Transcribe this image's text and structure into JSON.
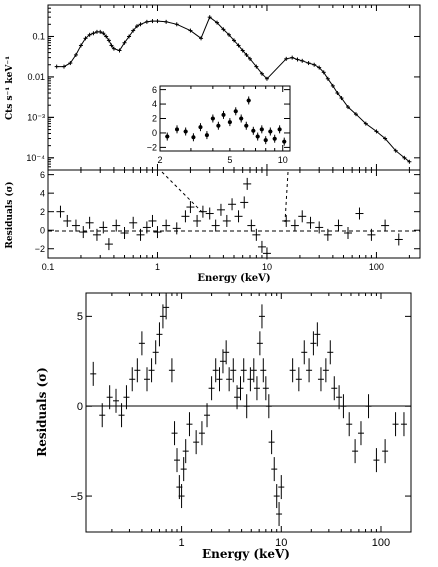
{
  "chart_data": [
    {
      "id": "top_spectrum",
      "type": "scatter",
      "title": "",
      "xlabel": "",
      "ylabel": "Cts s⁻¹ keV⁻¹",
      "xscale": "log",
      "yscale": "log",
      "xlim": [
        0.1,
        250
      ],
      "ylim": [
        5e-05,
        0.6
      ],
      "y_ticks": [
        {
          "v": 0.1,
          "label": "0.1"
        },
        {
          "v": 0.01,
          "label": "0.01"
        },
        {
          "v": 0.001,
          "label": "10⁻³"
        },
        {
          "v": 0.0001,
          "label": "10⁻⁴"
        }
      ],
      "series": [
        {
          "x": [
            0.12,
            0.14,
            0.16,
            0.18,
            0.2,
            0.22,
            0.24,
            0.26,
            0.28,
            0.3,
            0.32,
            0.34,
            0.36,
            0.38,
            0.4,
            0.45,
            0.5,
            0.55,
            0.6,
            0.65,
            0.7,
            0.8,
            0.9,
            1.0,
            1.2,
            1.5,
            2.0,
            2.5,
            3.0,
            3.5,
            4.0,
            4.5,
            5.0,
            5.5,
            6.0,
            6.5,
            7.0,
            8.0,
            9.0,
            10.0,
            15,
            17,
            19,
            21,
            24,
            27,
            30,
            33,
            36,
            40,
            44,
            48,
            55,
            65,
            80,
            100,
            120,
            150,
            180,
            200
          ],
          "y": [
            0.018,
            0.018,
            0.022,
            0.035,
            0.06,
            0.09,
            0.11,
            0.12,
            0.13,
            0.13,
            0.12,
            0.1,
            0.08,
            0.06,
            0.05,
            0.045,
            0.07,
            0.1,
            0.14,
            0.18,
            0.2,
            0.23,
            0.24,
            0.24,
            0.23,
            0.2,
            0.14,
            0.09,
            0.3,
            0.22,
            0.15,
            0.11,
            0.08,
            0.06,
            0.045,
            0.035,
            0.028,
            0.018,
            0.012,
            0.009,
            0.028,
            0.03,
            0.027,
            0.025,
            0.022,
            0.02,
            0.017,
            0.013,
            0.009,
            0.006,
            0.004,
            0.003,
            0.0018,
            0.0012,
            0.0007,
            0.00045,
            0.0003,
            0.00015,
            0.0001,
            8e-05
          ]
        }
      ]
    },
    {
      "id": "top_inset",
      "type": "scatter",
      "xscale": "log",
      "xlim": [
        2,
        11
      ],
      "ylim": [
        -2.5,
        6.5
      ],
      "x_ticks": [
        {
          "v": 2,
          "label": "2"
        },
        {
          "v": 5,
          "label": "5"
        },
        {
          "v": 10,
          "label": "10"
        }
      ],
      "y_ticks": [
        {
          "v": -2,
          "label": "−2"
        },
        {
          "v": 0,
          "label": "0"
        },
        {
          "v": 2,
          "label": "2"
        },
        {
          "v": 4,
          "label": "4"
        },
        {
          "v": 6,
          "label": "6"
        }
      ],
      "series": [
        {
          "x": [
            2.2,
            2.5,
            2.8,
            3.1,
            3.4,
            3.7,
            4.0,
            4.3,
            4.6,
            5.0,
            5.4,
            5.8,
            6.2,
            6.4,
            6.8,
            7.2,
            7.6,
            8.0,
            8.5,
            9.0,
            9.6,
            10.2
          ],
          "y": [
            -0.5,
            0.5,
            0.2,
            -0.6,
            0.8,
            -0.3,
            2.0,
            1.0,
            2.5,
            1.5,
            3.0,
            2.0,
            1.0,
            4.5,
            0.3,
            -0.5,
            0.5,
            -1.0,
            0.2,
            -0.8,
            0.5,
            -1.2
          ]
        }
      ]
    },
    {
      "id": "top_residuals",
      "type": "scatter",
      "xlabel": "Energy (keV)",
      "ylabel": "Residuals (σ)",
      "xscale": "log",
      "xlim": [
        0.1,
        250
      ],
      "ylim": [
        -3,
        6.5
      ],
      "x_ticks": [
        {
          "v": 0.1,
          "label": "0.1"
        },
        {
          "v": 1,
          "label": "1"
        },
        {
          "v": 10,
          "label": "10"
        },
        {
          "v": 100,
          "label": "100"
        }
      ],
      "y_ticks": [
        {
          "v": -2,
          "label": "−2"
        },
        {
          "v": 0,
          "label": "0"
        },
        {
          "v": 2,
          "label": "2"
        },
        {
          "v": 4,
          "label": "4"
        },
        {
          "v": 6,
          "label": "6"
        }
      ],
      "series": [
        {
          "x": [
            0.13,
            0.15,
            0.18,
            0.21,
            0.24,
            0.28,
            0.32,
            0.36,
            0.42,
            0.5,
            0.6,
            0.7,
            0.8,
            0.9,
            1.0,
            1.2,
            1.5,
            1.8,
            2.0,
            2.3,
            2.6,
            3.0,
            3.4,
            3.8,
            4.3,
            4.8,
            5.5,
            6.2,
            6.6,
            7.2,
            8.0,
            9.0,
            10.0,
            15,
            18,
            21,
            25,
            30,
            36,
            45,
            55,
            70,
            90,
            120,
            160
          ],
          "y": [
            2.0,
            1.0,
            0.5,
            -0.2,
            0.8,
            -0.5,
            0.3,
            -1.5,
            0.5,
            -0.3,
            0.8,
            -0.5,
            0.3,
            1.0,
            -0.2,
            0.5,
            0.2,
            1.5,
            2.5,
            1.0,
            2.0,
            1.8,
            0.5,
            2.2,
            1.0,
            2.8,
            1.5,
            3.0,
            5.0,
            0.5,
            -0.5,
            -1.8,
            -2.5,
            1.0,
            0.5,
            1.5,
            0.8,
            0.3,
            -0.5,
            0.5,
            -0.3,
            1.8,
            -0.5,
            0.5,
            -1.0
          ]
        }
      ]
    },
    {
      "id": "bottom_residuals",
      "type": "scatter",
      "xlabel": "Energy (keV)",
      "ylabel": "Residuals (σ)",
      "xscale": "log",
      "xlim": [
        0.11,
        200
      ],
      "ylim": [
        -7,
        6.3
      ],
      "x_ticks": [
        {
          "v": 1,
          "label": "1"
        },
        {
          "v": 10,
          "label": "10"
        },
        {
          "v": 100,
          "label": "100"
        }
      ],
      "y_ticks": [
        {
          "v": -5,
          "label": "−5"
        },
        {
          "v": 0,
          "label": "0"
        },
        {
          "v": 5,
          "label": "5"
        }
      ],
      "series": [
        {
          "x": [
            0.13,
            0.16,
            0.19,
            0.22,
            0.25,
            0.28,
            0.32,
            0.36,
            0.4,
            0.45,
            0.5,
            0.55,
            0.6,
            0.65,
            0.7,
            0.8,
            0.85,
            0.9,
            0.95,
            1.0,
            1.05,
            1.1,
            1.2,
            1.4,
            1.6,
            1.8,
            2.0,
            2.2,
            2.4,
            2.6,
            2.8,
            3.0,
            3.3,
            3.6,
            3.9,
            4.2,
            4.5,
            4.9,
            5.3,
            5.7,
            6.1,
            6.4,
            6.6,
            7.0,
            7.5,
            8.0,
            8.5,
            9.0,
            9.5,
            10.0,
            13,
            15,
            17,
            19,
            21,
            23,
            25,
            28,
            31,
            34,
            38,
            42,
            48,
            55,
            63,
            75,
            90,
            110,
            140,
            170
          ],
          "y": [
            1.8,
            -0.5,
            0.5,
            0.3,
            -0.5,
            0.5,
            1.5,
            2.0,
            3.5,
            1.5,
            2.0,
            3.0,
            4.0,
            5.0,
            5.5,
            2.0,
            -1.5,
            -3.0,
            -4.5,
            -5.0,
            -3.5,
            -2.5,
            -1.0,
            -2.0,
            -1.5,
            -0.5,
            1.0,
            2.0,
            1.5,
            2.5,
            3.0,
            1.5,
            2.0,
            0.5,
            1.0,
            2.0,
            0.0,
            1.5,
            2.0,
            1.0,
            3.5,
            5.0,
            2.0,
            1.0,
            0.0,
            -2.0,
            -3.5,
            -5.0,
            -6.0,
            -4.5,
            2.0,
            1.5,
            3.0,
            2.0,
            3.5,
            4.0,
            1.5,
            2.0,
            3.0,
            1.0,
            0.5,
            0.0,
            -1.0,
            -2.5,
            -1.5,
            0.0,
            -3.0,
            -2.5,
            -1.0,
            -1.0
          ]
        }
      ]
    }
  ]
}
